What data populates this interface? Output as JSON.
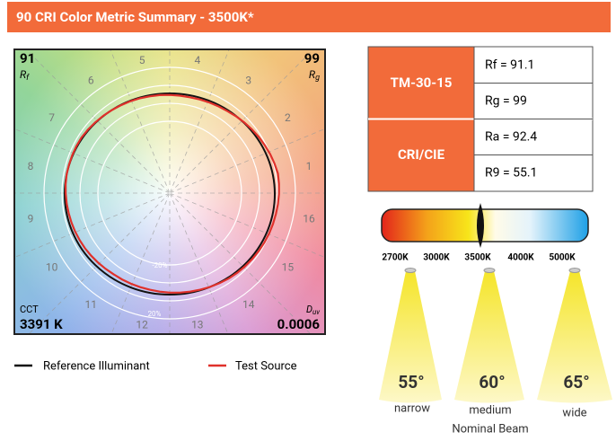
{
  "header": {
    "title": "90 CRI Color Metric Summary - 3500K*"
  },
  "vector_graphic": {
    "rf_value": "91",
    "rf_label": {
      "main": "R",
      "sub": "f"
    },
    "rg_value": "99",
    "rg_label": {
      "main": "R",
      "sub": "g"
    },
    "cct_label": "CCT",
    "cct_value": "3391 K",
    "duv_label": {
      "main": "D",
      "sub": "uv"
    },
    "duv_value": "0.0006",
    "hue_bins": [
      "1",
      "2",
      "3",
      "4",
      "5",
      "6",
      "7",
      "8",
      "9",
      "10",
      "11",
      "12",
      "13",
      "14",
      "15",
      "16"
    ],
    "ring_labels": [
      "-20%",
      "20%"
    ]
  },
  "legend": [
    "Reference Illuminant",
    "Test Source"
  ],
  "table": {
    "groups": [
      {
        "label": "TM-30-15",
        "metrics": [
          "Rf = 91.1",
          "Rg = 99"
        ]
      },
      {
        "label": "CRI/CIE",
        "metrics": [
          "Ra = 92.4",
          "R9 = 55.1"
        ]
      }
    ]
  },
  "cct_scale": {
    "labels": [
      "2700K",
      "3000K",
      "3500K",
      "4000K",
      "5000K"
    ]
  },
  "beams": {
    "items": [
      {
        "angle": "55°",
        "name": "narrow"
      },
      {
        "angle": "60°",
        "name": "medium"
      },
      {
        "angle": "65°",
        "name": "wide"
      }
    ],
    "caption": "Nominal Beam"
  }
}
